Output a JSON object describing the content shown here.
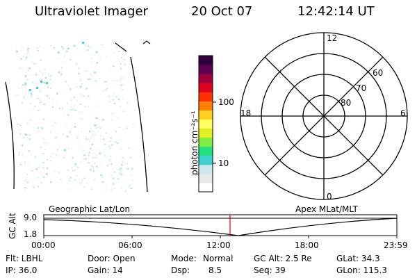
{
  "header": {
    "instrument": "Ultraviolet Imager",
    "date": "20 Oct 07",
    "time": "12:42:14 UT"
  },
  "colorbar": {
    "unit_label": "photon cm⁻²s⁻¹",
    "ticks": [
      "100",
      "10"
    ],
    "colors": [
      "#ffffff",
      "#e8e8e8",
      "#cfe8f0",
      "#40d0d0",
      "#20e080",
      "#80f040",
      "#e0f020",
      "#ffff60",
      "#ffd020",
      "#ff8000",
      "#ff3000",
      "#e00020",
      "#a00040",
      "#600050",
      "#300040"
    ]
  },
  "polar": {
    "mlt_labels": {
      "top": "12",
      "left": "18",
      "right": "6",
      "bottom": "0"
    },
    "lat_labels": [
      "60",
      "70",
      "80"
    ]
  },
  "timeline": {
    "left_title": "Geographic Lat/Lon",
    "right_title": "Apex MLat/MLT",
    "y_axis_label": "GC Alt",
    "y_ticks": [
      "9.0",
      "1.8"
    ],
    "x_ticks": [
      "00:00",
      "06:00",
      "12:00",
      "18:00",
      "23:59"
    ],
    "current_marker_color": "#e00000"
  },
  "footer": {
    "flt": "Flt: LBHL",
    "door": "Door: Open",
    "mode_label": "Mode:",
    "mode_value": "Normal",
    "gc_alt": "GC Alt: 2.5 Re",
    "glat": "GLat:  34.3",
    "ip": "IP: 36.0",
    "gain": "Gain: 14",
    "dsp_label": "Dsp:",
    "dsp_value": "8.5",
    "seq": "Seq: 39",
    "glon": "GLon: 115.3"
  }
}
